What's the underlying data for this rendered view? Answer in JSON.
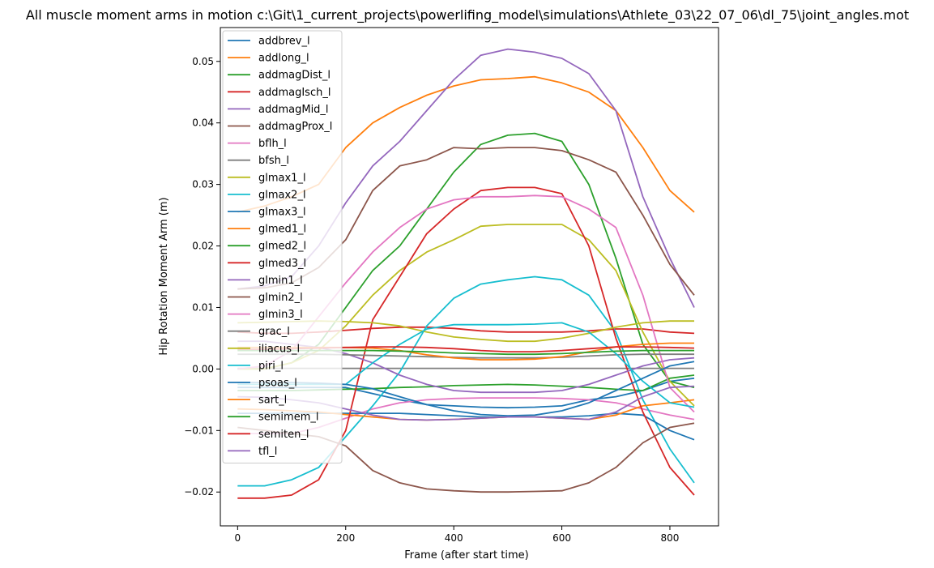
{
  "chart_data": {
    "type": "line",
    "title": "All muscle moment arms in motion c:\\Git\\1_current_projects\\powerlifing_model\\simulations\\Athlete_03\\22_07_06\\dl_75\\joint_angles.mot",
    "xlabel": "Frame (after start time)",
    "ylabel": "Hip Rotation Moment Arm (m)",
    "xlim": [
      -32,
      890
    ],
    "ylim": [
      -0.0255,
      0.0555
    ],
    "xticks": [
      0,
      200,
      400,
      600,
      800
    ],
    "xtick_labels": [
      "0",
      "200",
      "400",
      "600",
      "800"
    ],
    "yticks": [
      -0.02,
      -0.01,
      0.0,
      0.01,
      0.02,
      0.03,
      0.04,
      0.05
    ],
    "ytick_labels": [
      "−0.02",
      "−0.01",
      "0.00",
      "0.01",
      "0.02",
      "0.03",
      "0.04",
      "0.05"
    ],
    "grid": false,
    "legend_position": "upper-left",
    "x": [
      0,
      50,
      100,
      150,
      200,
      250,
      300,
      350,
      400,
      450,
      500,
      550,
      600,
      650,
      700,
      750,
      800,
      845
    ],
    "series": [
      {
        "name": "addbrev_l",
        "color": "#1f77b4",
        "values": [
          -0.003,
          -0.003,
          -0.003,
          -0.003,
          -0.003,
          -0.004,
          -0.005,
          -0.0058,
          -0.006,
          -0.0062,
          -0.0063,
          -0.0062,
          -0.006,
          -0.005,
          -0.0045,
          -0.0035,
          -0.002,
          -0.0015
        ]
      },
      {
        "name": "addlong_l",
        "color": "#ff7f0e",
        "values": [
          0.0255,
          0.0265,
          0.028,
          0.03,
          0.036,
          0.04,
          0.0425,
          0.0445,
          0.046,
          0.047,
          0.0472,
          0.0475,
          0.0465,
          0.045,
          0.042,
          0.036,
          0.029,
          0.0255
        ]
      },
      {
        "name": "addmagDist_l",
        "color": "#2ca02c",
        "values": [
          0.0,
          0.0,
          0.001,
          0.004,
          0.01,
          0.016,
          0.02,
          0.026,
          0.032,
          0.0365,
          0.038,
          0.0383,
          0.037,
          0.03,
          0.018,
          0.004,
          -0.002,
          -0.003
        ]
      },
      {
        "name": "addmagIsch_l",
        "color": "#d62728",
        "values": [
          0.006,
          0.0058,
          0.0058,
          0.006,
          0.0063,
          0.0066,
          0.0068,
          0.0068,
          0.0066,
          0.0062,
          0.006,
          0.006,
          0.006,
          0.0062,
          0.0065,
          0.0065,
          0.006,
          0.0058
        ]
      },
      {
        "name": "addmagMid_l",
        "color": "#9467bd",
        "values": [
          0.013,
          0.0135,
          0.015,
          0.02,
          0.027,
          0.033,
          0.037,
          0.042,
          0.047,
          0.051,
          0.052,
          0.0515,
          0.0505,
          0.048,
          0.042,
          0.028,
          0.018,
          0.01
        ]
      },
      {
        "name": "addmagProx_l",
        "color": "#8c564b",
        "values": [
          0.013,
          0.0132,
          0.014,
          0.0165,
          0.021,
          0.029,
          0.033,
          0.034,
          0.036,
          0.0358,
          0.036,
          0.036,
          0.0355,
          0.034,
          0.032,
          0.025,
          0.017,
          0.012
        ]
      },
      {
        "name": "bflh_l",
        "color": "#e377c2",
        "values": [
          -0.0105,
          -0.0105,
          -0.0105,
          -0.0095,
          -0.008,
          -0.0065,
          -0.0055,
          -0.005,
          -0.0048,
          -0.0047,
          -0.0047,
          -0.0047,
          -0.0048,
          -0.005,
          -0.0055,
          -0.0065,
          -0.0075,
          -0.0082
        ]
      },
      {
        "name": "bfsh_l",
        "color": "#7f7f7f",
        "values": [
          0.0001,
          0.0001,
          0.0001,
          0.0001,
          0.0001,
          0.0001,
          0.0001,
          0.0001,
          0.0001,
          0.0001,
          0.0001,
          0.0001,
          0.0001,
          0.0001,
          0.0001,
          0.0001,
          0.0001,
          0.0001
        ]
      },
      {
        "name": "glmax1_l",
        "color": "#bcbd22",
        "values": [
          0.0,
          0.0,
          0.001,
          0.003,
          0.007,
          0.012,
          0.016,
          0.019,
          0.021,
          0.0232,
          0.0235,
          0.0235,
          0.0235,
          0.021,
          0.016,
          0.006,
          -0.002,
          -0.006
        ]
      },
      {
        "name": "glmax2_l",
        "color": "#17becf",
        "values": [
          -0.019,
          -0.019,
          -0.018,
          -0.016,
          -0.011,
          -0.006,
          -0.0005,
          0.007,
          0.0115,
          0.0138,
          0.0145,
          0.015,
          0.0145,
          0.012,
          0.006,
          -0.005,
          -0.013,
          -0.0185
        ]
      },
      {
        "name": "glmax3_l",
        "color": "#1f77b4",
        "values": [
          -0.0072,
          -0.0072,
          -0.0072,
          -0.0072,
          -0.0072,
          -0.0072,
          -0.0072,
          -0.0074,
          -0.0076,
          -0.0078,
          -0.0078,
          -0.0078,
          -0.0078,
          -0.0076,
          -0.0072,
          -0.0075,
          -0.01,
          -0.0115
        ]
      },
      {
        "name": "glmed1_l",
        "color": "#ff7f0e",
        "values": [
          -0.0065,
          -0.0066,
          -0.0068,
          -0.007,
          -0.0074,
          -0.0078,
          -0.0082,
          -0.0083,
          -0.0082,
          -0.008,
          -0.0078,
          -0.0078,
          -0.008,
          -0.0082,
          -0.0075,
          -0.006,
          -0.0055,
          -0.005
        ]
      },
      {
        "name": "glmed2_l",
        "color": "#2ca02c",
        "values": [
          -0.0035,
          -0.0035,
          -0.0035,
          -0.0034,
          -0.0033,
          -0.0032,
          -0.003,
          -0.0029,
          -0.0027,
          -0.0026,
          -0.0025,
          -0.0026,
          -0.0028,
          -0.003,
          -0.0033,
          -0.0035,
          -0.0015,
          -0.001
        ]
      },
      {
        "name": "glmed3_l",
        "color": "#d62728",
        "values": [
          -0.021,
          -0.021,
          -0.0205,
          -0.018,
          -0.01,
          0.008,
          0.015,
          0.022,
          0.026,
          0.029,
          0.0295,
          0.0295,
          0.0285,
          0.02,
          0.005,
          -0.007,
          -0.016,
          -0.0205
        ]
      },
      {
        "name": "glmin1_l",
        "color": "#9467bd",
        "values": [
          0.0045,
          0.0045,
          0.004,
          0.0035,
          0.0025,
          0.001,
          -0.001,
          -0.0025,
          -0.0035,
          -0.0038,
          -0.0038,
          -0.0038,
          -0.0035,
          -0.0025,
          -0.001,
          0.0005,
          0.0015,
          0.0018
        ]
      },
      {
        "name": "glmin2_l",
        "color": "#8c564b",
        "values": [
          -0.0095,
          -0.01,
          -0.0105,
          -0.011,
          -0.0125,
          -0.0165,
          -0.0185,
          -0.0195,
          -0.0198,
          -0.02,
          -0.02,
          -0.0199,
          -0.0198,
          -0.0185,
          -0.016,
          -0.012,
          -0.0095,
          -0.0088
        ]
      },
      {
        "name": "glmin3_l",
        "color": "#e377c2",
        "values": [
          0.0,
          0.0005,
          0.003,
          0.0085,
          0.014,
          0.019,
          0.023,
          0.026,
          0.0275,
          0.028,
          0.028,
          0.0282,
          0.028,
          0.026,
          0.023,
          0.012,
          -0.003,
          -0.007
        ]
      },
      {
        "name": "grac_l",
        "color": "#7f7f7f",
        "values": [
          0.0024,
          0.0024,
          0.0024,
          0.0024,
          0.0023,
          0.0022,
          0.0021,
          0.002,
          0.0019,
          0.0018,
          0.0018,
          0.0018,
          0.0019,
          0.0021,
          0.0023,
          0.0024,
          0.0024,
          0.0024
        ]
      },
      {
        "name": "iliacus_l",
        "color": "#bcbd22",
        "values": [
          0.0075,
          0.0076,
          0.0077,
          0.0078,
          0.0077,
          0.0075,
          0.007,
          0.006,
          0.0052,
          0.0048,
          0.0045,
          0.0045,
          0.005,
          0.0058,
          0.0068,
          0.0075,
          0.0078,
          0.0078
        ]
      },
      {
        "name": "piri_l",
        "color": "#17becf",
        "values": [
          -0.0025,
          -0.0025,
          -0.0025,
          -0.0025,
          -0.0025,
          0.001,
          0.004,
          0.0065,
          0.0072,
          0.0072,
          0.0072,
          0.0073,
          0.0075,
          0.006,
          0.0025,
          -0.002,
          -0.0055,
          -0.0062
        ]
      },
      {
        "name": "psoas_l",
        "color": "#1f77b4",
        "values": [
          -0.0022,
          -0.0022,
          -0.0022,
          -0.0023,
          -0.0025,
          -0.0032,
          -0.0045,
          -0.0058,
          -0.0068,
          -0.0074,
          -0.0076,
          -0.0075,
          -0.0068,
          -0.0055,
          -0.0035,
          -0.0015,
          0.0005,
          0.0012
        ]
      },
      {
        "name": "sart_l",
        "color": "#ff7f0e",
        "values": [
          0.0035,
          0.0035,
          0.0035,
          0.0035,
          0.0035,
          0.0034,
          0.003,
          0.0023,
          0.0018,
          0.0015,
          0.0015,
          0.0016,
          0.002,
          0.0028,
          0.0036,
          0.004,
          0.0042,
          0.0042
        ]
      },
      {
        "name": "semimem_l",
        "color": "#2ca02c",
        "values": [
          0.003,
          0.003,
          0.003,
          0.003,
          0.003,
          0.003,
          0.0029,
          0.0028,
          0.0026,
          0.0025,
          0.0024,
          0.0024,
          0.0025,
          0.0027,
          0.0029,
          0.003,
          0.003,
          0.003
        ]
      },
      {
        "name": "semiten_l",
        "color": "#d62728",
        "values": [
          0.0032,
          0.0032,
          0.0033,
          0.0034,
          0.0035,
          0.0036,
          0.0036,
          0.0035,
          0.0033,
          0.003,
          0.0028,
          0.0028,
          0.003,
          0.0033,
          0.0036,
          0.0036,
          0.0035,
          0.0034
        ]
      },
      {
        "name": "tfl_l",
        "color": "#9467bd",
        "values": [
          -0.0045,
          -0.0046,
          -0.005,
          -0.0055,
          -0.0065,
          -0.0075,
          -0.0082,
          -0.0083,
          -0.0082,
          -0.008,
          -0.0078,
          -0.0078,
          -0.008,
          -0.0082,
          -0.007,
          -0.0045,
          -0.003,
          -0.0028
        ]
      }
    ]
  }
}
